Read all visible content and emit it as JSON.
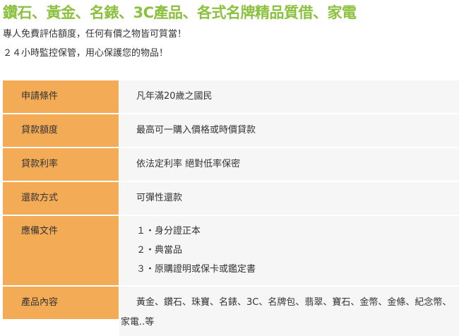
{
  "header": {
    "title": "鑽石、黃金、名錶、3C產品、各式名牌精品質借、家電",
    "line1": "專人免費評估額度，任何有價之物皆可質當！",
    "line2": "２４小時監控保管，用心保護您的物品！"
  },
  "table": {
    "accent_color": "#f4ab55",
    "rows": [
      {
        "label": "申請條件",
        "value": "凡年滿20歲之國民"
      },
      {
        "label": "貸款額度",
        "value": "最高可一購入價格或時價貸款"
      },
      {
        "label": "貸款利率",
        "value": "依法定利率 絕對低率保密"
      },
      {
        "label": "還款方式",
        "value": "可彈性還款"
      },
      {
        "label": "應備文件",
        "items": [
          "１・身分證正本",
          "２・典當品",
          "３・原購證明或保卡或鑑定書"
        ]
      },
      {
        "label": "產品內容",
        "value": "黃金、鑽石、珠寶、名錶、3C、名牌包、翡翠、寶石、金幣、金條、紀念幣、家電..等"
      }
    ]
  }
}
